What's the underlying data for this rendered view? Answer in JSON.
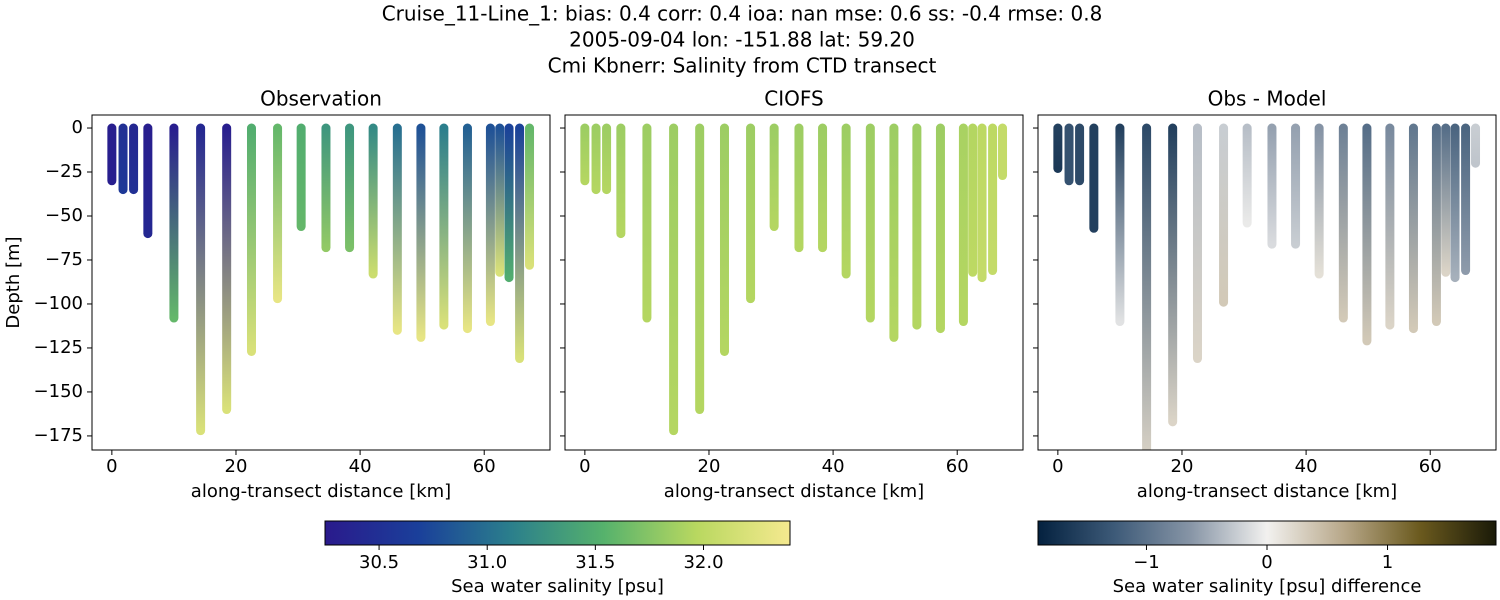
{
  "figure_title": [
    "Cruise_11-Line_1: bias: 0.4  corr: 0.4  ioa: nan  mse: 0.6  ss: -0.4  rmse: 0.8",
    "2005-09-04 lon: -151.88 lat: 59.20",
    "Cmi Kbnerr: Salinity from CTD transect"
  ],
  "chart_data": [
    {
      "type": "profile",
      "title": "Observation",
      "xlabel": "along-transect distance [km]",
      "ylabel": "Depth [m]",
      "colorbar": 0,
      "show_ytick_labels": true,
      "x": [
        0,
        1.8,
        3.5,
        5.8,
        10,
        14.3,
        18.5,
        22.5,
        26.7,
        30.5,
        34.5,
        38.3,
        42.1,
        46,
        49.8,
        53.5,
        57.3,
        61,
        62.5,
        64,
        65.7,
        67.3
      ],
      "depth": [
        -30,
        -35,
        -35,
        -60,
        -108,
        -172,
        -160,
        -127,
        -97,
        -56,
        -68,
        -68,
        -83,
        -115,
        -119,
        -112,
        -114,
        -110,
        -82,
        -85,
        -131,
        -78
      ],
      "top": [
        30.3,
        30.5,
        30.4,
        30.3,
        30.3,
        30.4,
        30.3,
        31.5,
        31.6,
        31.5,
        31.3,
        31.3,
        31.2,
        31.0,
        30.8,
        31.1,
        30.9,
        30.8,
        30.8,
        30.7,
        30.7,
        31.6
      ],
      "bottom": [
        30.3,
        30.6,
        30.5,
        30.4,
        31.6,
        32.2,
        32.2,
        32.2,
        32.3,
        31.6,
        31.8,
        31.7,
        32.1,
        32.3,
        32.3,
        32.2,
        32.3,
        32.3,
        32.2,
        31.5,
        32.2,
        32.2
      ],
      "xlim": [
        -3.2,
        70.6
      ],
      "ylim": [
        -183,
        7.4
      ],
      "xticks": [
        0,
        20,
        40,
        60
      ],
      "yticks": [
        0,
        {
          "value": -25,
          "label": "−25"
        },
        {
          "value": -50,
          "label": "−50"
        },
        {
          "value": -75,
          "label": "−75"
        },
        {
          "value": -100,
          "label": "−100"
        },
        {
          "value": -125,
          "label": "−125"
        },
        {
          "value": -150,
          "label": "−150"
        },
        {
          "value": -175,
          "label": "−175"
        }
      ]
    },
    {
      "type": "profile",
      "title": "CIOFS",
      "xlabel": "along-transect distance [km]",
      "colorbar": 0,
      "show_ytick_labels": false,
      "x": [
        0,
        1.8,
        3.5,
        5.8,
        10,
        14.3,
        18.5,
        22.5,
        26.7,
        30.5,
        34.5,
        38.3,
        42.1,
        46,
        49.8,
        53.5,
        57.3,
        61,
        62.5,
        64,
        65.7,
        67.3
      ],
      "depth": [
        -30,
        -35,
        -35,
        -60,
        -108,
        -172,
        -160,
        -127,
        -97,
        -56,
        -68,
        -68,
        -83,
        -108,
        -119,
        -112,
        -114,
        -110,
        -82,
        -85,
        -81,
        -27
      ],
      "top": [
        31.85,
        31.85,
        31.85,
        31.85,
        31.85,
        31.85,
        31.85,
        31.85,
        31.85,
        31.85,
        31.85,
        31.85,
        31.85,
        31.85,
        31.85,
        31.85,
        31.85,
        31.9,
        31.95,
        32.0,
        32.0,
        32.05
      ],
      "bottom": [
        31.95,
        31.95,
        31.95,
        31.95,
        31.95,
        31.95,
        31.95,
        31.95,
        31.95,
        31.95,
        31.95,
        31.95,
        31.95,
        31.95,
        31.95,
        31.95,
        31.95,
        31.95,
        32.0,
        32.05,
        32.05,
        32.05
      ],
      "xlim": [
        -3.2,
        70.6
      ],
      "ylim": [
        -183,
        7.4
      ],
      "xticks": [
        0,
        20,
        40,
        60
      ],
      "yticks": [
        0,
        -25,
        -50,
        -75,
        -100,
        -125,
        -150,
        -175
      ]
    },
    {
      "type": "profile",
      "title": "Obs - Model",
      "xlabel": "along-transect distance [km]",
      "colorbar": 1,
      "show_ytick_labels": false,
      "x": [
        0,
        1.8,
        3.5,
        5.8,
        10,
        14.3,
        18.5,
        22.5,
        26.7,
        30.5,
        34.5,
        38.3,
        42.1,
        46,
        49.8,
        53.5,
        57.3,
        61,
        62.5,
        64,
        65.7,
        67.3
      ],
      "depth": [
        -23,
        -30,
        -30,
        -57,
        -110,
        -190,
        -167,
        -131,
        -99,
        -54,
        -66,
        -66,
        -83,
        -108,
        -121,
        -112,
        -114,
        -110,
        -82,
        -85,
        -81,
        -20
      ],
      "top": [
        -1.55,
        -1.35,
        -1.45,
        -1.55,
        -1.55,
        -1.45,
        -1.55,
        -0.35,
        -0.25,
        -0.35,
        -0.55,
        -0.55,
        -0.65,
        -0.85,
        -1.05,
        -0.75,
        -0.95,
        -1.05,
        -1.05,
        -1.15,
        -1.15,
        -0.25
      ],
      "bottom": [
        -1.65,
        -1.35,
        -1.45,
        -1.55,
        -0.1,
        0.25,
        0.25,
        0.25,
        0.35,
        -0.05,
        -0.15,
        -0.25,
        0.15,
        0.35,
        0.35,
        0.25,
        0.35,
        0.35,
        0.25,
        -0.45,
        -0.6,
        -0.3
      ],
      "xlim": [
        -3.2,
        70.6
      ],
      "ylim": [
        -183,
        7.4
      ],
      "xticks": [
        0,
        20,
        40,
        60
      ],
      "yticks": [
        0,
        -25,
        -50,
        -75,
        -100,
        -125,
        -150,
        -175
      ]
    }
  ],
  "colorbars": [
    {
      "label": "Sea water salinity [psu]",
      "lim": [
        30.25,
        32.4
      ],
      "cmap": [
        "#2a1a8c",
        "#1a3f9a",
        "#2b7f8c",
        "#56b26c",
        "#b9d860",
        "#f5e98f"
      ],
      "ticks": [
        30.5,
        {
          "value": 31,
          "label": "31.0"
        },
        31.5,
        {
          "value": 32,
          "label": "32.0"
        }
      ]
    },
    {
      "label": "Sea water salinity [psu] difference",
      "lim": [
        -1.9,
        1.9
      ],
      "cmap": [
        "#04213f",
        "#3d5a78",
        "#8795a6",
        "#f2f1ef",
        "#b8a88a",
        "#6b5a1e",
        "#1a1a08"
      ],
      "ticks": [
        {
          "value": -1,
          "label": "−1"
        },
        0,
        1
      ]
    }
  ]
}
